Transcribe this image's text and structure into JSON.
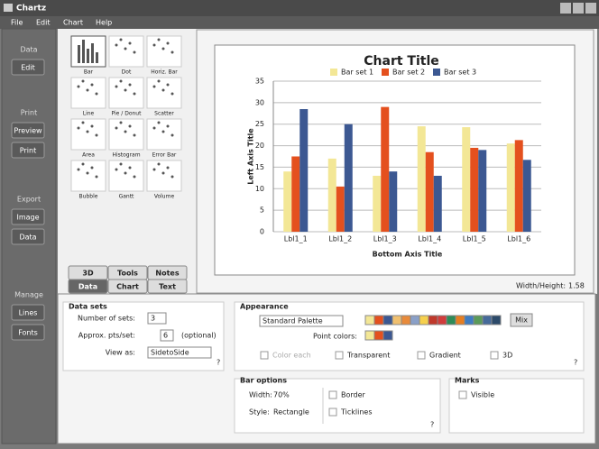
{
  "window": {
    "title": "Chartz"
  },
  "menu": [
    "File",
    "Edit",
    "Chart",
    "Help"
  ],
  "sidebar": [
    {
      "label": "Data",
      "buttons": [
        "Edit"
      ]
    },
    {
      "label": "Print",
      "buttons": [
        "Preview",
        "Print"
      ]
    },
    {
      "label": "Export",
      "buttons": [
        "Image",
        "Data"
      ]
    },
    {
      "label": "Manage",
      "buttons": [
        "Lines",
        "Fonts"
      ]
    }
  ],
  "chart_types": [
    "Bar",
    "Dot",
    "Horiz. Bar",
    "Line",
    "Pie / Donut",
    "Scatter",
    "Area",
    "Histogram",
    "Error Bar",
    "Bubble",
    "Gantt",
    "Volume"
  ],
  "tabs": {
    "top": [
      "3D",
      "Tools",
      "Notes"
    ],
    "bottom": [
      "Data",
      "Chart",
      "Text"
    ]
  },
  "chart_data": {
    "type": "bar",
    "title": "Chart Title",
    "y_label": "Left Axis Title",
    "x_label": "Bottom Axis Title",
    "categories": [
      "Lbl1_1",
      "Lbl1_2",
      "Lbl1_3",
      "Lbl1_4",
      "Lbl1_5",
      "Lbl1_6"
    ],
    "series": [
      {
        "name": "Bar set 1",
        "color": "#f3e796",
        "values": [
          14,
          17,
          13,
          24.5,
          24.3,
          20.5
        ]
      },
      {
        "name": "Bar set 2",
        "color": "#e4501e",
        "values": [
          17.5,
          10.5,
          29,
          18.5,
          19.5,
          21.3
        ]
      },
      {
        "name": "Bar set 3",
        "color": "#3c5892",
        "values": [
          28.5,
          25,
          14,
          13,
          19,
          16.7
        ]
      }
    ],
    "ylim": [
      0,
      35
    ],
    "yticks": [
      0,
      5,
      10,
      15,
      20,
      25,
      30,
      35
    ],
    "grid": true,
    "legend": "top"
  },
  "aspect": {
    "label": "Width/Height:",
    "value": "1.58"
  },
  "data_sets": {
    "title": "Data sets",
    "sets": {
      "label": "Number of sets:",
      "value": "3"
    },
    "points": {
      "label": "Approx. pts/set:",
      "value": "6",
      "note": "(optional)"
    },
    "view": {
      "label": "View as:",
      "value": "SidetoSide"
    },
    "help": "?"
  },
  "appearance": {
    "title": "Appearance",
    "palette": "Standard Palette",
    "mix": "Mix",
    "point_colors": "Point colors:",
    "options": [
      "Color each",
      "Transparent",
      "Gradient",
      "3D"
    ],
    "help": "?"
  },
  "bar_options": {
    "title": "Bar options",
    "width": {
      "label": "Width:",
      "value": "70%"
    },
    "style": {
      "label": "Style:",
      "value": "Rectangle"
    },
    "options": [
      "Border",
      "Ticklines"
    ],
    "help": "?"
  },
  "marks": {
    "title": "Marks",
    "options": [
      "Visible"
    ]
  }
}
